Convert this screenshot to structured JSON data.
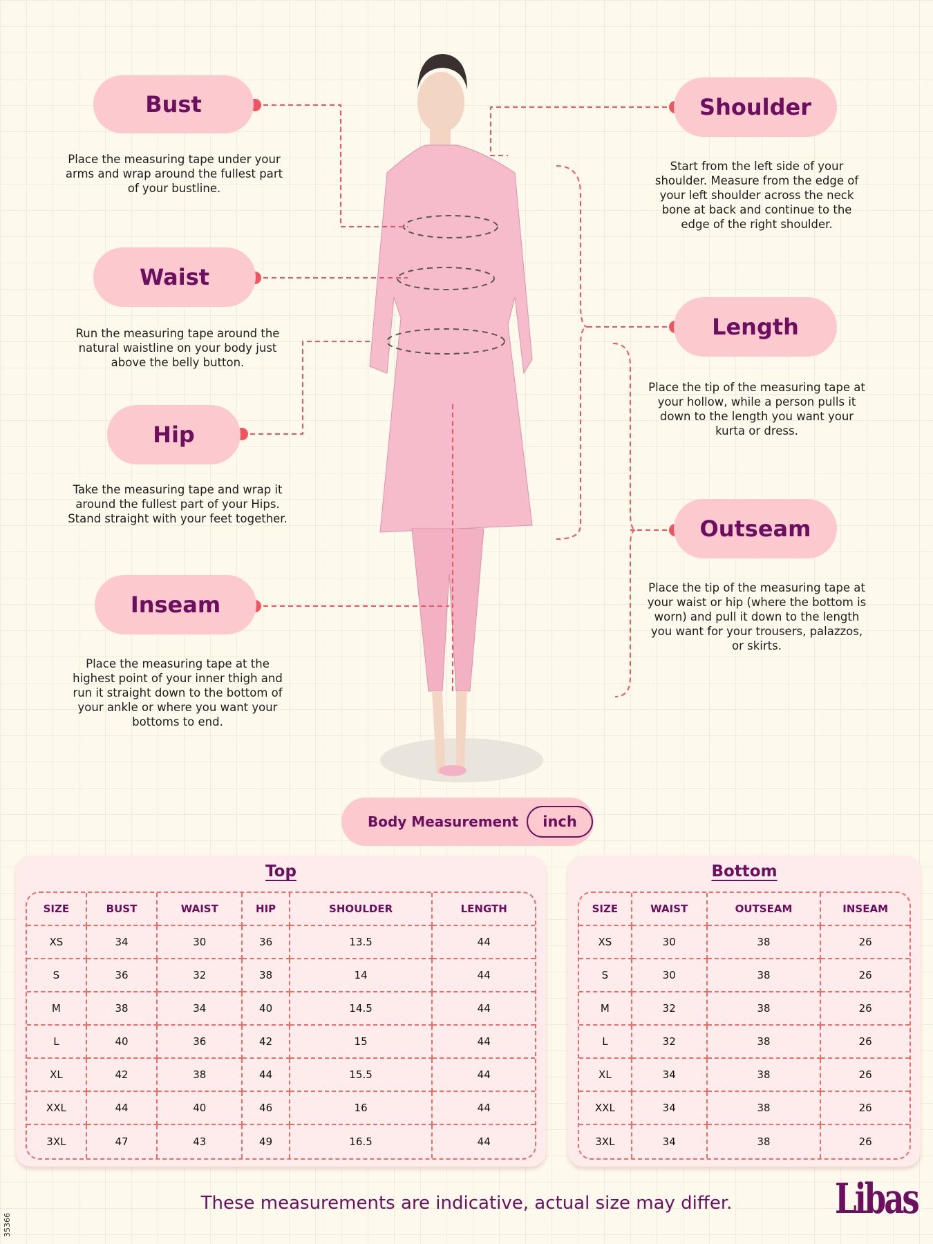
{
  "measurements": {
    "bust": {
      "label": "Bust",
      "desc": "Place the measuring tape under your arms and wrap around the fullest part of your bustline."
    },
    "waist": {
      "label": "Waist",
      "desc": "Run the measuring tape around the natural waistline on your body just above the belly button."
    },
    "hip": {
      "label": "Hip",
      "desc": "Take the measuring tape and wrap it around the fullest part of your Hips. Stand straight with your feet together."
    },
    "inseam": {
      "label": "Inseam",
      "desc": "Place the measuring tape at the highest point of your inner thigh and run it straight down to the bottom of your ankle or where you want your bottoms to end."
    },
    "shoulder": {
      "label": "Shoulder",
      "desc": "Start from the left side of your shoulder. Measure from the edge of your left shoulder across the neck bone at back and continue to the edge of the right shoulder."
    },
    "length": {
      "label": "Length",
      "desc": "Place the tip of the measuring tape at your hollow, while a person pulls it down to the length you want your kurta or dress."
    },
    "outseam": {
      "label": "Outseam",
      "desc": "Place the tip of the measuring tape at your waist or hip (where the bottom is worn) and pull it down to the length you want for your trousers, palazzos, or skirts."
    }
  },
  "body_measurement": {
    "label": "Body Measurement",
    "unit": "inch"
  },
  "top": {
    "title": "Top",
    "headers": [
      "SIZE",
      "BUST",
      "WAIST",
      "HIP",
      "SHOULDER",
      "LENGTH"
    ],
    "rows": [
      [
        "XS",
        "34",
        "30",
        "36",
        "13.5",
        "44"
      ],
      [
        "S",
        "36",
        "32",
        "38",
        "14",
        "44"
      ],
      [
        "M",
        "38",
        "34",
        "40",
        "14.5",
        "44"
      ],
      [
        "L",
        "40",
        "36",
        "42",
        "15",
        "44"
      ],
      [
        "XL",
        "42",
        "38",
        "44",
        "15.5",
        "44"
      ],
      [
        "XXL",
        "44",
        "40",
        "46",
        "16",
        "44"
      ],
      [
        "3XL",
        "47",
        "43",
        "49",
        "16.5",
        "44"
      ]
    ]
  },
  "bottom": {
    "title": "Bottom",
    "headers": [
      "SIZE",
      "WAIST",
      "OUTSEAM",
      "INSEAM"
    ],
    "rows": [
      [
        "XS",
        "30",
        "38",
        "26"
      ],
      [
        "S",
        "30",
        "38",
        "26"
      ],
      [
        "M",
        "32",
        "38",
        "26"
      ],
      [
        "L",
        "32",
        "38",
        "26"
      ],
      [
        "XL",
        "34",
        "38",
        "26"
      ],
      [
        "XXL",
        "34",
        "38",
        "26"
      ],
      [
        "3XL",
        "34",
        "38",
        "26"
      ]
    ]
  },
  "footer": "These measurements are indicative, actual size may differ.",
  "logo": "Libas",
  "code": "35366",
  "colors": {
    "accent": "#f0545e",
    "brand": "#6d0f5f",
    "pill": "#fcc9cf"
  }
}
